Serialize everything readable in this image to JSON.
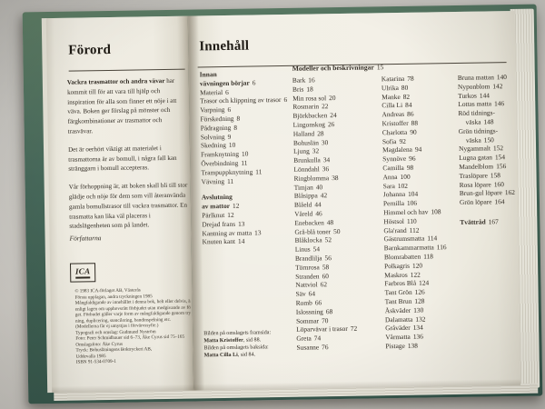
{
  "photo": {
    "background_hex": "#c7c5c0",
    "cover_hex": "#47685a",
    "page_hex": "#f0ede3",
    "ink_hex": "#322c24"
  },
  "left_page": {
    "heading": "Förord",
    "paragraphs": [
      {
        "lead": "Vackra trasmattor och andra vävar",
        "text": " har kommit till för att vara till hjälp och inspiration för alla som finner ett nöje i att väva. Boken ger förslag på mönster och färgkombinationer av trasmattor och trasvävar."
      },
      {
        "lead": "",
        "text": "Det är oerhört viktigt att materialet i trasmattorna är av bomull, i några fall kan stränggarn i bomull accepteras."
      },
      {
        "lead": "",
        "text": "Vår förhoppning är, att boken skall bli till stor glädje och nöje för dem som vill återanvända gamla bomullstrasor till vackra trasmattor. En trasmatta kan lika väl placeras i stadslägenheten som på landet."
      }
    ],
    "signature": "Författarna",
    "logo_text": "ICA",
    "colophon": [
      "© 1983 ICA-förlaget AB, Västerås",
      "Första upplagan, andra tryckningen 1985",
      "Mångfaldigande av innehållet i denna bok, helt eller delvis, är",
      "enligt lagen om upphovsrätt förbjudet utan medgivande av förla-",
      "get. Förbudet gäller varje form av mångfaldigande genom tryck-",
      "ning, duplicering, stencilering, bandinspelning etc.",
      "(Modellerna får ej utnyttjas i förvärvssyfte.)",
      "Typografi och omslag: Gudmund Nyström",
      "Foto: Peter Schmidbauer sid 6–73, Åke Cyrus sid 75–165",
      "Omslagsfoto: Åke Cyrus",
      "Tryck: Bohusläningens Boktryckeri AB,",
      "Uddevalla 1985",
      "ISBN 91-534-0709-1"
    ]
  },
  "right_page": {
    "heading": "Innehåll",
    "col1": {
      "section1": {
        "title_line1": "Innan",
        "title_line2": "vävningen börjar",
        "page": "6",
        "items": [
          {
            "label": "Material",
            "page": "6"
          },
          {
            "label": "Trasor och klippning av trasor",
            "page": "6"
          },
          {
            "label": "Varpning",
            "page": "6"
          },
          {
            "label": "Förskedning",
            "page": "8"
          },
          {
            "label": "Pådragning",
            "page": "8"
          },
          {
            "label": "Solvning",
            "page": "9"
          },
          {
            "label": "Skedning",
            "page": "10"
          },
          {
            "label": "Framknytning",
            "page": "10"
          },
          {
            "label": "Överbindning",
            "page": "11"
          },
          {
            "label": "Trampuppknytning",
            "page": "11"
          },
          {
            "label": "Vävning",
            "page": "11"
          }
        ]
      },
      "section2": {
        "title_line1": "Avslutning",
        "title_line2": "av mattor",
        "page": "12",
        "items": [
          {
            "label": "Pärlknut",
            "page": "12"
          },
          {
            "label": "Drejad frans",
            "page": "13"
          },
          {
            "label": "Kantning av matta",
            "page": "13"
          },
          {
            "label": "Knuten kant",
            "page": "14"
          }
        ]
      },
      "cover_note": [
        {
          "bold": "",
          "rest": "Bilden på omslagets framsida:"
        },
        {
          "bold": "Matta Kristoffer",
          "rest": ", sid 88."
        },
        {
          "bold": "",
          "rest": "Bilden på omslagets baksida:"
        },
        {
          "bold": "Matta Cilla Li",
          "rest": ", sid 84."
        }
      ]
    },
    "models_header": {
      "title": "Modeller och beskrivningar",
      "page": "15"
    },
    "col2_items": [
      {
        "label": "Bark",
        "page": "16"
      },
      {
        "label": "Bris",
        "page": "18"
      },
      {
        "label": "Min rosa sol",
        "page": "20"
      },
      {
        "label": "Rosmarin",
        "page": "22"
      },
      {
        "label": "Björkbacken",
        "page": "24"
      },
      {
        "label": "Lingonskog",
        "page": "26"
      },
      {
        "label": "Halland",
        "page": "28"
      },
      {
        "label": "Bohuslän",
        "page": "30"
      },
      {
        "label": "Ljung",
        "page": "32"
      },
      {
        "label": "Brunkulla",
        "page": "34"
      },
      {
        "label": "Lönndahl",
        "page": "36"
      },
      {
        "label": "Ringblomma",
        "page": "38"
      },
      {
        "label": "Timjan",
        "page": "40"
      },
      {
        "label": "Blåsippa",
        "page": "42"
      },
      {
        "label": "Blåeld",
        "page": "44"
      },
      {
        "label": "Våreld",
        "page": "46"
      },
      {
        "label": "Enebacken",
        "page": "48"
      },
      {
        "label": "Grå-blå toner",
        "page": "50"
      },
      {
        "label": "Blåklocka",
        "page": "52"
      },
      {
        "label": "Linus",
        "page": "54"
      },
      {
        "label": "Brandlilja",
        "page": "56"
      },
      {
        "label": "Törnrosa",
        "page": "58"
      },
      {
        "label": "Stranden",
        "page": "60"
      },
      {
        "label": "Nattviol",
        "page": "62"
      },
      {
        "label": "Säv",
        "page": "64"
      },
      {
        "label": "Romb",
        "page": "66"
      },
      {
        "label": "Islossning",
        "page": "68"
      },
      {
        "label": "Sommar",
        "page": "70"
      },
      {
        "label": "Löparvävar i trasor",
        "page": "72"
      },
      {
        "label": "Greta",
        "page": "74"
      },
      {
        "label": "Susanne",
        "page": "76"
      }
    ],
    "col3_items": [
      {
        "label": "Katarina",
        "page": "78"
      },
      {
        "label": "Ulrika",
        "page": "80"
      },
      {
        "label": "Manke",
        "page": "82"
      },
      {
        "label": "Cilla Li",
        "page": "84"
      },
      {
        "label": "Andreas",
        "page": "86"
      },
      {
        "label": "Kristoffer",
        "page": "88"
      },
      {
        "label": "Charlotta",
        "page": "90"
      },
      {
        "label": "Sofia",
        "page": "92"
      },
      {
        "label": "Magdalena",
        "page": "94"
      },
      {
        "label": "Synnöve",
        "page": "96"
      },
      {
        "label": "Camilla",
        "page": "98"
      },
      {
        "label": "Anna",
        "page": "100"
      },
      {
        "label": "Sara",
        "page": "102"
      },
      {
        "label": "Johanna",
        "page": "104"
      },
      {
        "label": "Pernilla",
        "page": "106"
      },
      {
        "label": "Himmel och hav",
        "page": "108"
      },
      {
        "label": "Höstsol",
        "page": "110"
      },
      {
        "label": "Gla'rand",
        "page": "112"
      },
      {
        "label": "Gästrumsmatta",
        "page": "114"
      },
      {
        "label": "Barnkammarmatta",
        "page": "116"
      },
      {
        "label": "Blomrabatten",
        "page": "118"
      },
      {
        "label": "Polkagris",
        "page": "120"
      },
      {
        "label": "Maskros",
        "page": "122"
      },
      {
        "label": "Farbros Blå",
        "page": "124"
      },
      {
        "label": "Tant Grön",
        "page": "126"
      },
      {
        "label": "Tant Brun",
        "page": "128"
      },
      {
        "label": "Åskväder",
        "page": "130"
      },
      {
        "label": "Dalamatta",
        "page": "132"
      },
      {
        "label": "Gråväder",
        "page": "134"
      },
      {
        "label": "Vårmatta",
        "page": "136"
      },
      {
        "label": "Pistage",
        "page": "138"
      }
    ],
    "col4_items": [
      {
        "label": "Bruna mattan",
        "page": "140"
      },
      {
        "label": "Nyponblom",
        "page": "142"
      },
      {
        "label": "Turkos",
        "page": "144"
      },
      {
        "label": "Lottas matta",
        "page": "146"
      },
      {
        "label": "Röd tidnings-väska",
        "page": "148"
      },
      {
        "label": "Grön tidnings-väska",
        "page": "150"
      },
      {
        "label": "Nygammalt",
        "page": "152"
      },
      {
        "label": "Lugna gatan",
        "page": "154"
      },
      {
        "label": "Mandelblom",
        "page": "156"
      },
      {
        "label": "Traslöpare",
        "page": "158"
      },
      {
        "label": "Rosa löpare",
        "page": "160"
      },
      {
        "label": "Brun-gul löpare",
        "page": "162"
      },
      {
        "label": "Grön löpare",
        "page": "164"
      }
    ],
    "col4_footer": {
      "title": "Tvättråd",
      "page": "167"
    }
  }
}
